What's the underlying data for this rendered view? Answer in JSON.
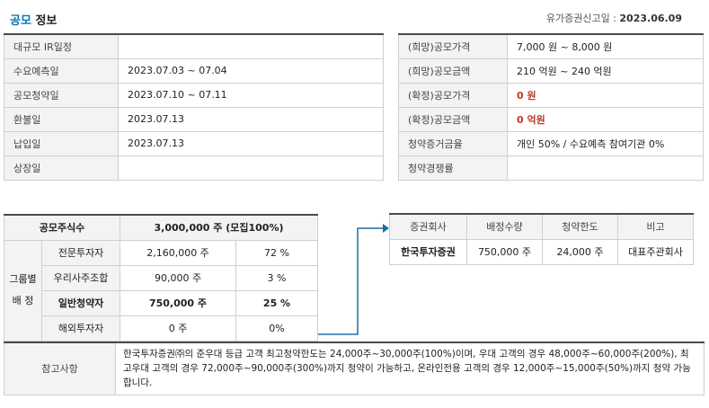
{
  "header": {
    "title_accent": "공모",
    "title_rest": " 정보",
    "report_date_label": "유가증권신고일 : ",
    "report_date_value": "2023.06.09"
  },
  "schedule": [
    {
      "label": "대규모 IR일정",
      "value": ""
    },
    {
      "label": "수요예측일",
      "value": "2023.07.03 ~ 07.04"
    },
    {
      "label": "공모청약일",
      "value": "2023.07.10 ~ 07.11"
    },
    {
      "label": "환불일",
      "value": "2023.07.13"
    },
    {
      "label": "납입일",
      "value": "2023.07.13"
    },
    {
      "label": "상장일",
      "value": ""
    }
  ],
  "pricing": [
    {
      "label": "(희망)공모가격",
      "value": "7,000 원 ~ 8,000 원"
    },
    {
      "label": "(희망)공모금액",
      "value": "210 억원  ~ 240 억원"
    },
    {
      "label": "(확정)공모가격",
      "value": "0 원"
    },
    {
      "label": "(확정)공모금액",
      "value": "0 억원"
    },
    {
      "label": "청약증거금율",
      "value": "개인 50% / 수요예측 참여기관 0%"
    },
    {
      "label": "청약경쟁률",
      "value": ""
    }
  ],
  "shares": {
    "total_label": "공모주식수",
    "total_value": "3,000,000 주 (모집100%)",
    "group_label_1": "그룹별",
    "group_label_2": "배 정",
    "rows": [
      {
        "category": "전문투자자",
        "shares": "2,160,000 주",
        "ratio": "72 %"
      },
      {
        "category": "우리사주조합",
        "shares": "90,000 주",
        "ratio": "3 %"
      },
      {
        "category": "일반청약자",
        "shares": "750,000 주",
        "ratio": "25 %"
      },
      {
        "category": "해외투자자",
        "shares": "0 주",
        "ratio": "0%"
      }
    ]
  },
  "underwriters": {
    "headers": [
      "증권회사",
      "배정수량",
      "청약한도",
      "비고"
    ],
    "rows": [
      {
        "company": "한국투자증권",
        "allocation": "750,000 주",
        "limit": "24,000 주",
        "note": "대표주관회사"
      }
    ]
  },
  "notes": {
    "label": "참고사항",
    "text": "한국투자증권㈜의 준우대 등급 고객 최고청약한도는 24,000주~30,000주(100%)이며, 우대 고객의 경우 48,000주~60,000주(200%), 최고우대 고객의 경우 72,000주~90,000주(300%)까지 청약이 가능하고, 온라인전용 고객의 경우 12,000주~15,000주(50%)까지 청약 가능합니다."
  }
}
